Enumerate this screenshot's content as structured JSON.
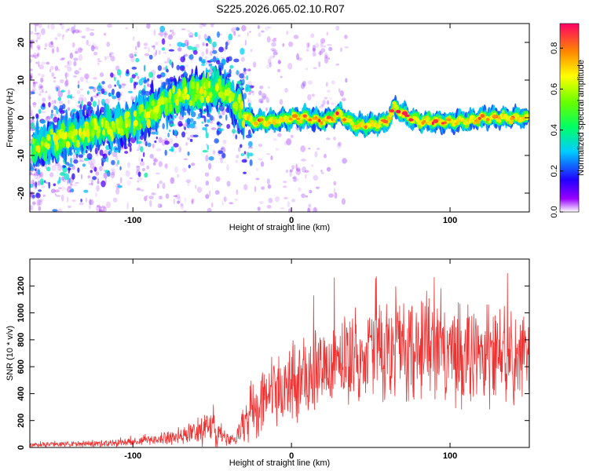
{
  "title": "S225.2026.065.02.10.R07",
  "chart_data": [
    {
      "type": "heatmap",
      "title": "S225.2026.065.02.10.R07",
      "xlabel": "Height of straight line (km)",
      "ylabel": "Frequency (Hz)",
      "xlim": [
        -165,
        150
      ],
      "ylim": [
        -25,
        25
      ],
      "xticks": [
        -100,
        0,
        100
      ],
      "xtick_labels": [
        "-100",
        "0",
        "100"
      ],
      "yticks": [
        -20,
        -10,
        0,
        10,
        20
      ],
      "ytick_labels": [
        "-20",
        "-10",
        "0",
        "10",
        "20"
      ],
      "colorbar": {
        "label": "Normalized spectral amplitude",
        "range": [
          0.0,
          0.92
        ],
        "ticks": [
          0.0,
          0.2,
          0.4,
          0.6,
          0.8
        ],
        "tick_labels": [
          "0.0",
          "0.2",
          "0.4",
          "0.6",
          "0.8"
        ]
      },
      "ridge": {
        "x": [
          -165,
          -150,
          -140,
          -130,
          -120,
          -110,
          -100,
          -90,
          -80,
          -70,
          -60,
          -50,
          -45,
          -40,
          -35,
          -30,
          -25,
          -20,
          -10,
          0,
          10,
          20,
          30,
          40,
          50,
          60,
          65,
          70,
          80,
          90,
          100,
          110,
          120,
          130,
          140,
          150
        ],
        "y": [
          -8,
          -6,
          -5,
          -4,
          -3,
          -2,
          -1,
          1,
          4,
          6,
          7,
          7,
          8,
          6,
          4,
          1,
          -1,
          -1,
          -1,
          0,
          0,
          -1,
          1,
          -2,
          -2,
          -1,
          3,
          1,
          -1,
          -1,
          -1,
          -1,
          0,
          0,
          0,
          0
        ]
      }
    },
    {
      "type": "line",
      "title": "",
      "xlabel": "Height of straight line (km)",
      "ylabel": "SNR (10 * v/v)",
      "xlim": [
        -165,
        150
      ],
      "ylim": [
        0,
        1400
      ],
      "xticks": [
        -100,
        0,
        100
      ],
      "xtick_labels": [
        "-100",
        "0",
        "100"
      ],
      "yticks": [
        0,
        200,
        400,
        600,
        800,
        1000,
        1200
      ],
      "ytick_labels": [
        "0",
        "200",
        "400",
        "600",
        "800",
        "1000",
        "1200"
      ],
      "series": [
        {
          "name": "SNR",
          "color": "#ee3333",
          "envelope_x": [
            -165,
            -140,
            -120,
            -100,
            -80,
            -60,
            -50,
            -40,
            -35,
            -30,
            -25,
            -20,
            -10,
            0,
            10,
            20,
            30,
            40,
            50,
            60,
            70,
            80,
            90,
            100,
            110,
            120,
            130,
            140,
            150
          ],
          "envelope_mean": [
            20,
            25,
            30,
            40,
            70,
            110,
            140,
            60,
            60,
            200,
            280,
            350,
            400,
            450,
            520,
            620,
            660,
            700,
            720,
            720,
            700,
            720,
            720,
            700,
            700,
            690,
            690,
            670,
            660
          ],
          "envelope_spread": [
            15,
            20,
            25,
            30,
            50,
            90,
            140,
            40,
            40,
            200,
            230,
            250,
            260,
            280,
            300,
            320,
            340,
            360,
            360,
            360,
            360,
            380,
            370,
            370,
            360,
            350,
            350,
            340,
            300
          ]
        }
      ]
    }
  ]
}
